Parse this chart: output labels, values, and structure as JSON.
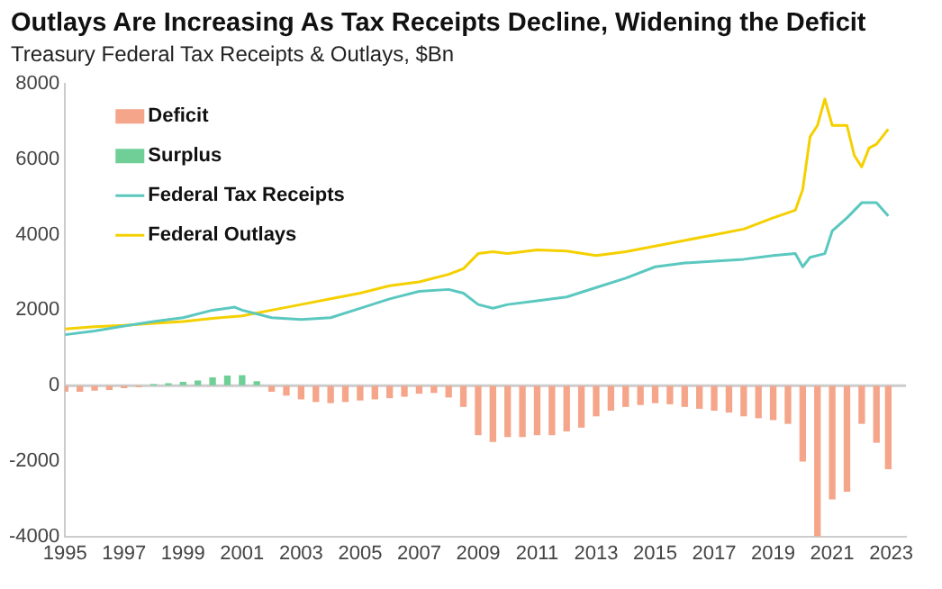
{
  "chart_data": {
    "type": "line",
    "title": "Outlays Are Increasing As Tax Receipts Decline, Widening the Deficit",
    "subtitle": "Treasury Federal Tax Receipts & Outlays, $Bn",
    "series": [
      {
        "name": "Deficit",
        "type": "bar",
        "color": "#f4a58a",
        "x": [
          1995,
          1995.5,
          1996,
          1996.5,
          1997,
          1997.5,
          1998,
          1998.5,
          1999,
          1999.5,
          2000,
          2000.5,
          2001,
          2001.5,
          2002,
          2002.5,
          2003,
          2003.5,
          2004,
          2004.5,
          2005,
          2005.5,
          2006,
          2006.5,
          2007,
          2007.5,
          2008,
          2008.5,
          2009,
          2009.5,
          2010,
          2010.5,
          2011,
          2011.5,
          2012,
          2012.5,
          2013,
          2013.5,
          2014,
          2014.5,
          2015,
          2015.5,
          2016,
          2016.5,
          2017,
          2017.5,
          2018,
          2018.5,
          2019,
          2019.5,
          2020,
          2020.5,
          2021,
          2021.5,
          2022,
          2022.5,
          2022.9
        ],
        "values": [
          -150,
          -150,
          -120,
          -100,
          -50,
          -30,
          null,
          null,
          null,
          null,
          null,
          null,
          null,
          null,
          -150,
          -250,
          -350,
          -420,
          -450,
          -420,
          -380,
          -350,
          -320,
          -280,
          -200,
          -180,
          -300,
          -550,
          -1300,
          -1480,
          -1350,
          -1350,
          -1300,
          -1300,
          -1200,
          -1100,
          -800,
          -650,
          -550,
          -500,
          -450,
          -480,
          -550,
          -600,
          -650,
          -700,
          -800,
          -850,
          -900,
          -1000,
          -2000,
          -4000,
          -3000,
          -2800,
          -1000,
          -1500,
          -2200
        ]
      },
      {
        "name": "Surplus",
        "type": "bar",
        "color": "#6fcf97",
        "x": [
          1998,
          1998.5,
          1999,
          1999.5,
          2000,
          2000.5,
          2001,
          2001.5
        ],
        "values": [
          20,
          50,
          80,
          120,
          200,
          250,
          260,
          100
        ]
      },
      {
        "name": "Federal Tax Receipts",
        "color": "#5bc8c0",
        "x": [
          1995,
          1996,
          1997,
          1998,
          1999,
          2000,
          2000.75,
          2001,
          2002,
          2003,
          2004,
          2005,
          2006,
          2007,
          2008,
          2008.5,
          2009,
          2009.5,
          2010,
          2011,
          2012,
          2013,
          2014,
          2015,
          2016,
          2017,
          2018,
          2019,
          2019.75,
          2020,
          2020.25,
          2020.75,
          2021,
          2021.5,
          2022,
          2022.5,
          2022.9
        ],
        "values": [
          1350,
          1450,
          1580,
          1700,
          1800,
          2000,
          2080,
          2000,
          1800,
          1750,
          1800,
          2050,
          2300,
          2500,
          2550,
          2450,
          2150,
          2050,
          2150,
          2250,
          2350,
          2600,
          2850,
          3150,
          3250,
          3300,
          3350,
          3450,
          3500,
          3150,
          3400,
          3500,
          4100,
          4450,
          4850,
          4850,
          4500
        ]
      },
      {
        "name": "Federal Outlays",
        "color": "#f5d000",
        "x": [
          1995,
          1996,
          1997,
          1998,
          1999,
          2000,
          2001,
          2002,
          2003,
          2004,
          2005,
          2006,
          2007,
          2008,
          2008.5,
          2009,
          2009.5,
          2010,
          2010.5,
          2011,
          2012,
          2013,
          2014,
          2015,
          2016,
          2017,
          2018,
          2019,
          2019.75,
          2020,
          2020.25,
          2020.5,
          2020.75,
          2021,
          2021.5,
          2021.75,
          2022,
          2022.25,
          2022.5,
          2022.9
        ],
        "values": [
          1500,
          1560,
          1600,
          1650,
          1700,
          1780,
          1850,
          2000,
          2150,
          2300,
          2450,
          2650,
          2750,
          2950,
          3100,
          3500,
          3550,
          3500,
          3550,
          3600,
          3570,
          3450,
          3550,
          3700,
          3850,
          4000,
          4150,
          4450,
          4650,
          5200,
          6600,
          6900,
          7600,
          6900,
          6900,
          6100,
          5800,
          6300,
          6400,
          6800
        ]
      }
    ],
    "xlim": [
      1995,
      2023.5
    ],
    "xticks": [
      1995,
      1997,
      1999,
      2001,
      2003,
      2005,
      2007,
      2009,
      2011,
      2013,
      2015,
      2017,
      2019,
      2021,
      2023
    ],
    "ylim": [
      -4000,
      8000
    ],
    "yticks": [
      -4000,
      -2000,
      0,
      2000,
      4000,
      6000,
      8000
    ],
    "ref_lines": [
      {
        "axis": "y",
        "value": 0,
        "color": "#cccccc"
      }
    ],
    "grid": false,
    "legend": "top left"
  }
}
